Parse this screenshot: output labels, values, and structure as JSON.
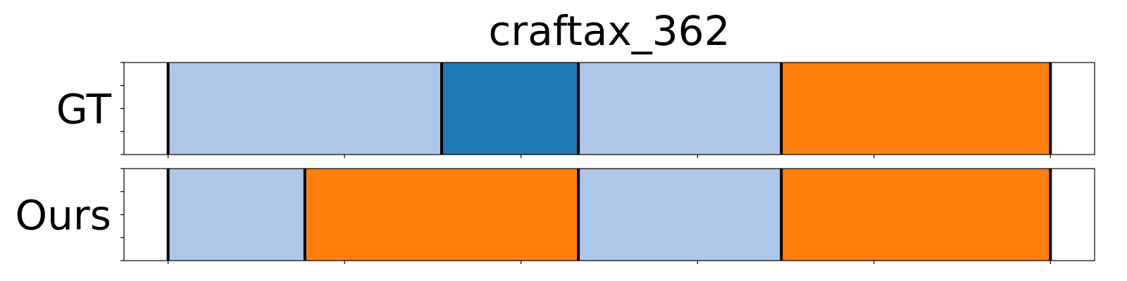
{
  "chart_data": {
    "type": "bar",
    "title": "craftax_362",
    "xlim": [
      0,
      11
    ],
    "x_ticks": [
      0.5,
      2.5,
      4.5,
      6.5,
      8.5,
      10.5
    ],
    "y_ticks": [
      0,
      0.25,
      0.5,
      0.75,
      1.0
    ],
    "grid": false,
    "rows": [
      {
        "label": "GT",
        "segments": [
          {
            "start": 0.5,
            "end": 3.6,
            "color": "#aec7e8"
          },
          {
            "start": 3.6,
            "end": 5.15,
            "color": "#1f77b4"
          },
          {
            "start": 5.15,
            "end": 7.45,
            "color": "#aec7e8"
          },
          {
            "start": 7.45,
            "end": 10.5,
            "color": "#ff7f0e"
          }
        ]
      },
      {
        "label": "Ours",
        "segments": [
          {
            "start": 0.5,
            "end": 2.05,
            "color": "#aec7e8"
          },
          {
            "start": 2.05,
            "end": 5.15,
            "color": "#ff7f0e"
          },
          {
            "start": 5.15,
            "end": 7.45,
            "color": "#aec7e8"
          },
          {
            "start": 7.45,
            "end": 10.5,
            "color": "#ff7f0e"
          }
        ]
      }
    ]
  }
}
